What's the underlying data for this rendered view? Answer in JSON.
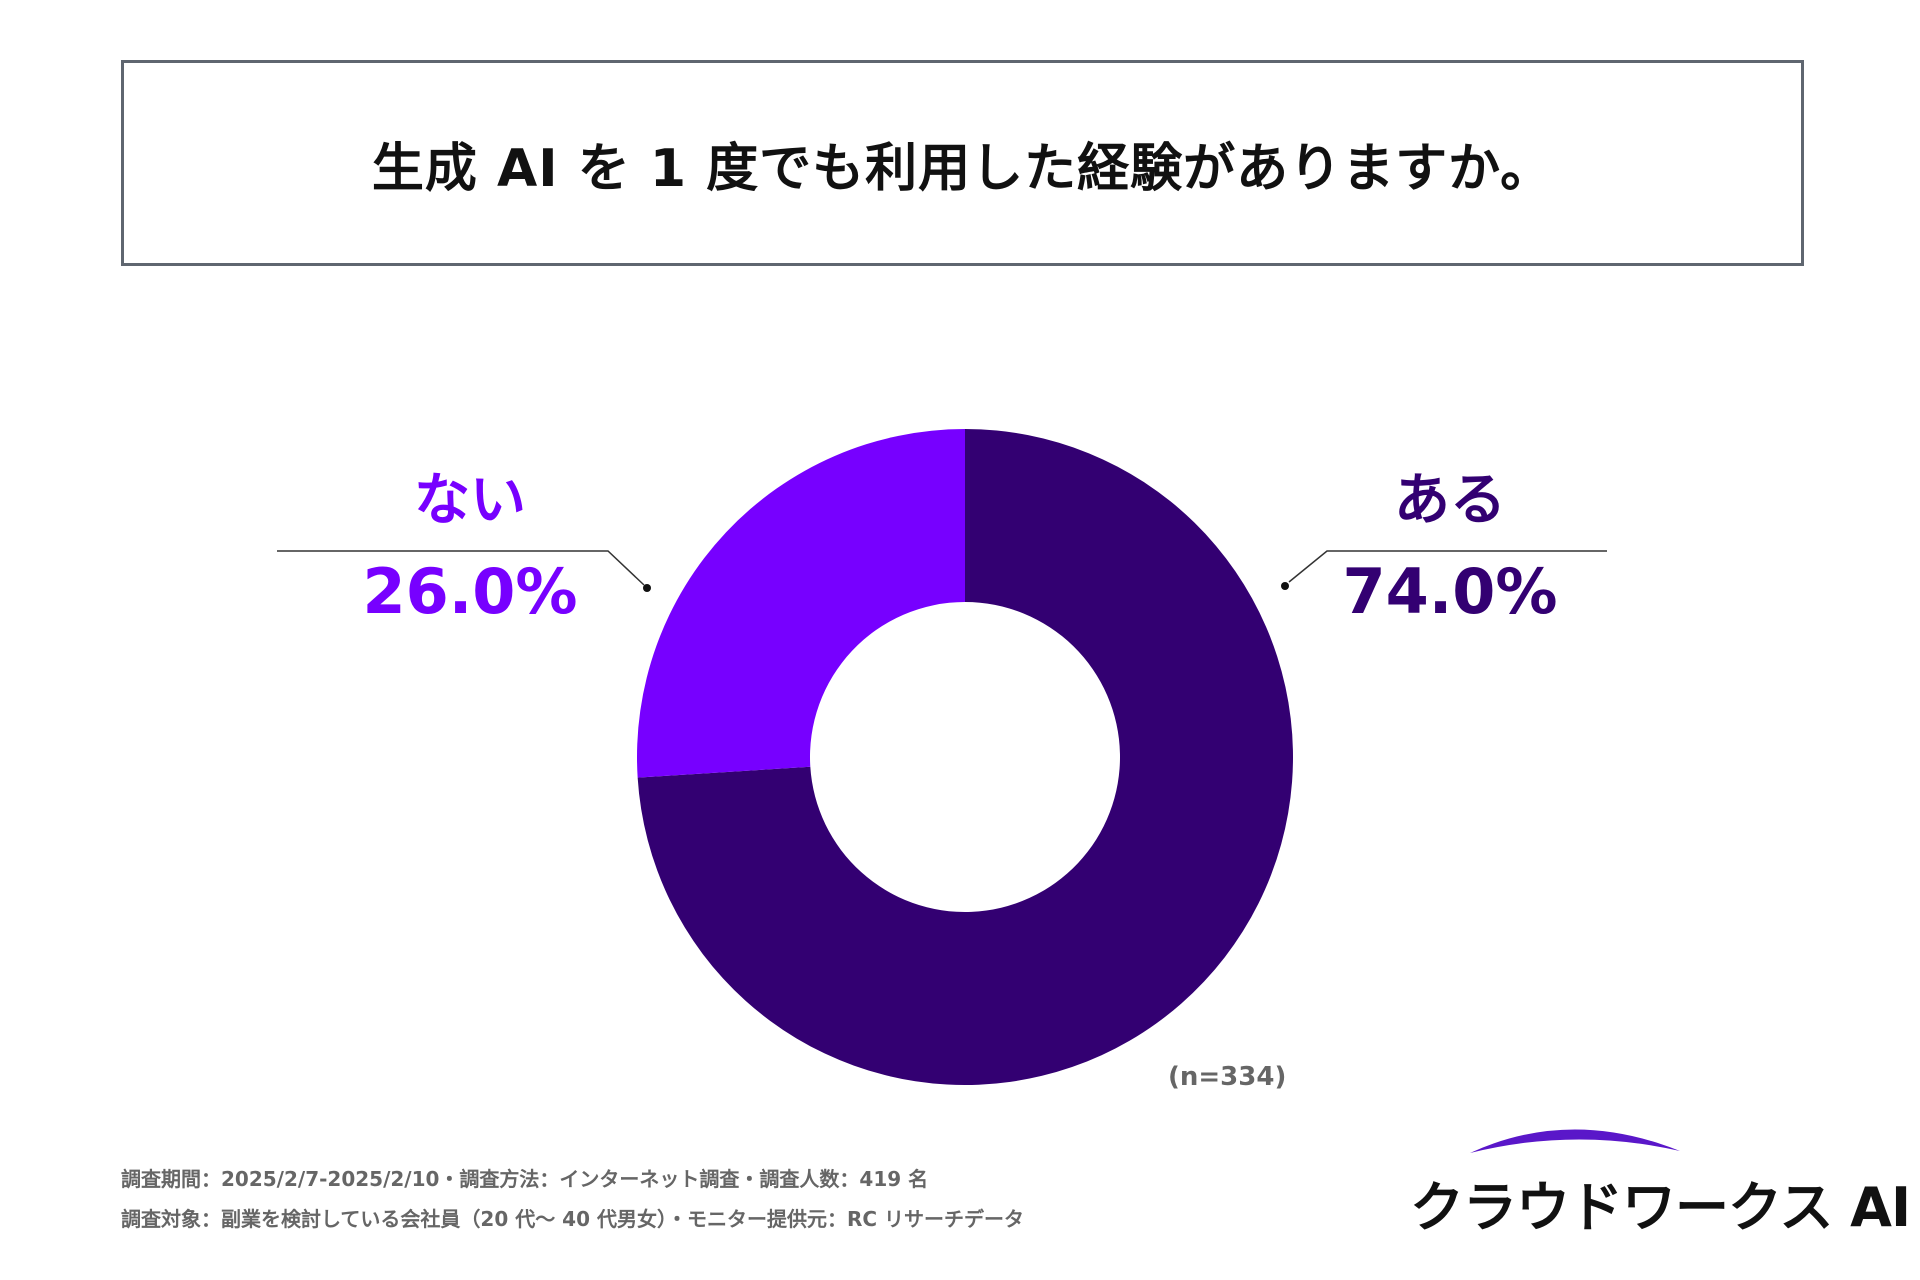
{
  "title": "生成 AI を 1 度でも利用した経験がありますか。",
  "chart_data": {
    "type": "pie",
    "donut": true,
    "slices": [
      {
        "label": "ある",
        "value": 74.0,
        "display": "74.0%",
        "color": "#330072"
      },
      {
        "label": "ない",
        "value": 26.0,
        "display": "26.0%",
        "color": "#7700ff"
      }
    ],
    "sample_size": "(n=334)"
  },
  "footnotes": [
    "調査期間：2025/2/7-2025/2/10・調査方法：インターネット調査・調査人数：419 名",
    "調査対象：副業を検討している会社員（20 代～ 40 代男女）・モニター提供元：RC リサーチデータ"
  ],
  "logo": {
    "text": "クラウドワークス AI",
    "color": "#5a17c9"
  }
}
